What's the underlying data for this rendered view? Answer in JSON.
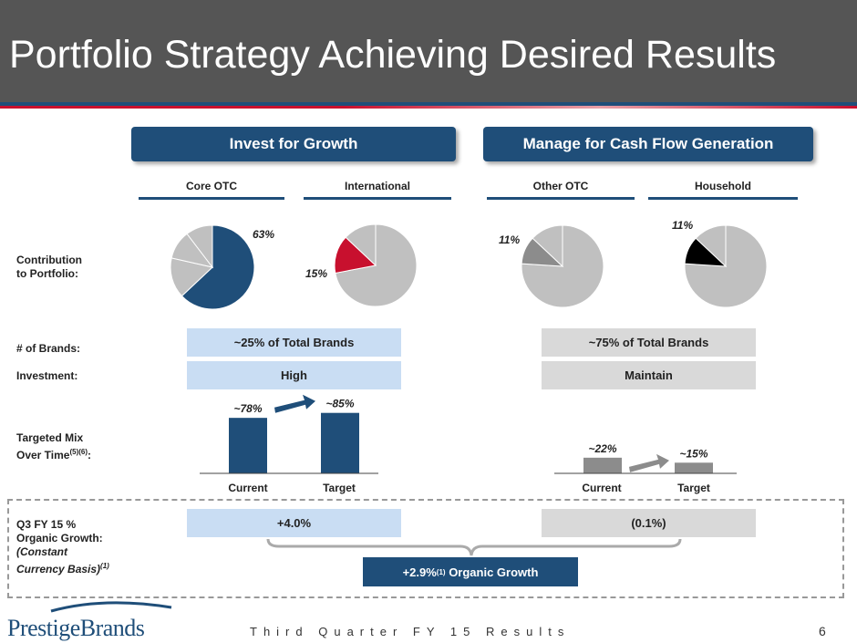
{
  "title": "Portfolio Strategy Achieving Desired Results",
  "sections": {
    "invest_label": "Invest for Growth",
    "manage_label": "Manage for Cash Flow Generation"
  },
  "categories": [
    "Core OTC",
    "International",
    "Other OTC",
    "Household"
  ],
  "rows": {
    "contribution": "Contribution\nto Portfolio:",
    "brands": "# of Brands:",
    "investment": "Investment:",
    "targeted_mix_main": "Targeted Mix\nOver Time",
    "targeted_mix_sup": "(5)(6)",
    "targeted_mix_end": ":",
    "q3_line1": "Q3 FY 15 %",
    "q3_line2": "Organic Growth:",
    "q3_line3": "(Constant",
    "q3_line4": "Currency Basis)",
    "q3_sup": "(1)"
  },
  "pies": [
    {
      "label": "63%",
      "value": 0.63,
      "color": "#1f4e79"
    },
    {
      "label": "15%",
      "value": 0.15,
      "color": "#c8102e"
    },
    {
      "label": "11%",
      "value": 0.11,
      "color": "#8c8c8c"
    },
    {
      "label": "11%",
      "value": 0.11,
      "color": "#000000"
    }
  ],
  "boxes": {
    "invest_brands": "~25% of Total Brands",
    "invest_investment": "High",
    "manage_brands": "~75% of Total Brands",
    "manage_investment": "Maintain",
    "invest_growth": "+4.0%",
    "manage_growth": "(0.1%)"
  },
  "chart_data": [
    {
      "type": "bar",
      "categories": [
        "Current",
        "Target"
      ],
      "values": [
        78,
        85
      ],
      "labels": [
        "~78%",
        "~85%"
      ],
      "color": "#1f4e79"
    },
    {
      "type": "bar",
      "categories": [
        "Current",
        "Target"
      ],
      "values": [
        22,
        15
      ],
      "labels": [
        "~22%",
        "~15%"
      ],
      "color": "#8c8c8c"
    }
  ],
  "organic_growth": {
    "prefix": "+2.9%",
    "sup": "(1)",
    "suffix": " Organic Growth"
  },
  "footer": {
    "logo": "PrestigeBrands",
    "text": "Third Quarter FY 15 Results",
    "page": "6"
  },
  "colors": {
    "header": "#555555",
    "navy": "#1f4e79",
    "red": "#c8102e",
    "light_blue": "#c9ddf3",
    "light_grey": "#d9d9d9",
    "pie_grey": "#c0c0c0"
  }
}
